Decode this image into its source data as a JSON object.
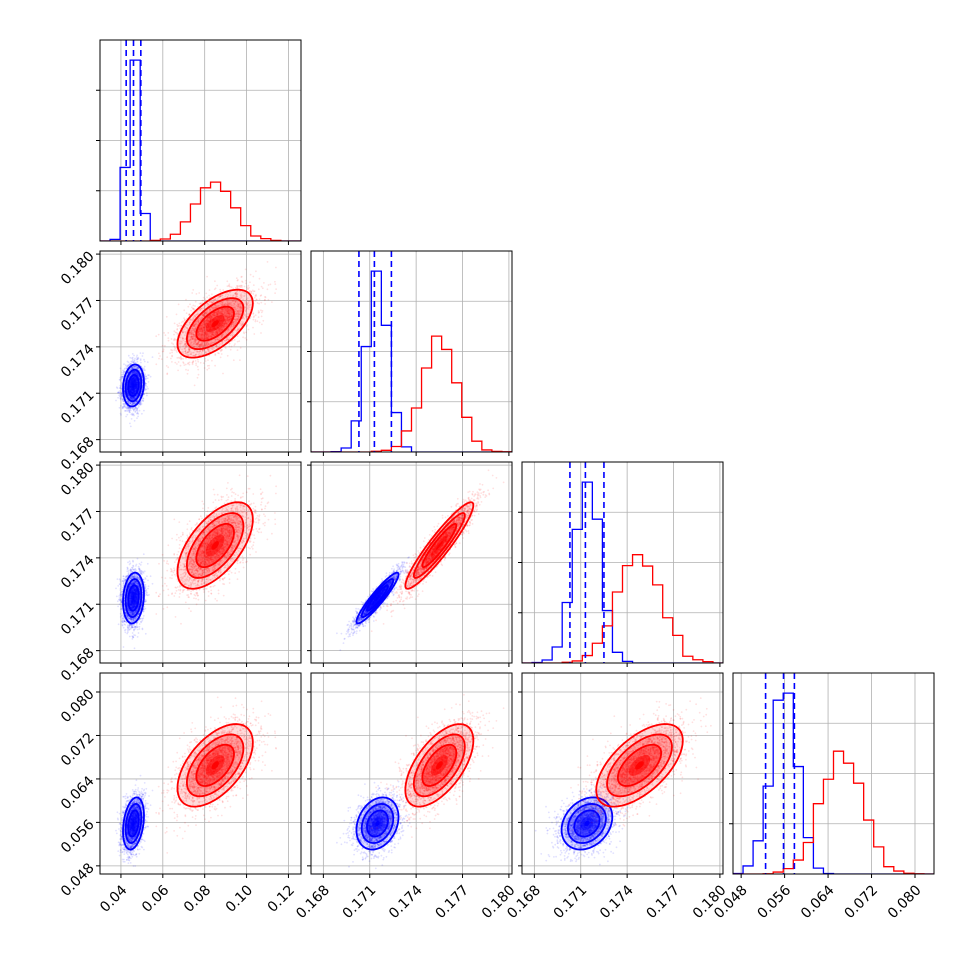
{
  "chart_data": {
    "type": "corner",
    "grid": true,
    "parameters": [
      {
        "ticks": [
          0.04,
          0.06,
          0.08,
          0.1,
          0.12
        ],
        "tick_labels": [
          "0.04",
          "0.06",
          "0.08",
          "0.10",
          "0.12"
        ],
        "range": [
          0.03,
          0.126
        ]
      },
      {
        "ticks": [
          0.168,
          0.171,
          0.174,
          0.177,
          0.18
        ],
        "tick_labels": [
          "0.168",
          "0.171",
          "0.174",
          "0.177",
          "0.180"
        ],
        "range": [
          0.1672,
          0.1802
        ]
      },
      {
        "ticks": [
          0.168,
          0.171,
          0.174,
          0.177,
          0.18
        ],
        "tick_labels": [
          "0.168",
          "0.171",
          "0.174",
          "0.177",
          "0.180"
        ],
        "range": [
          0.1672,
          0.1802
        ]
      },
      {
        "ticks": [
          0.048,
          0.056,
          0.064,
          0.072,
          0.08
        ],
        "tick_labels": [
          "0.048",
          "0.056",
          "0.064",
          "0.072",
          "0.080"
        ],
        "range": [
          0.0465,
          0.0835
        ]
      }
    ],
    "series": [
      {
        "color": "#0000ff",
        "means": [
          0.046,
          0.1715,
          0.1714,
          0.0558
        ],
        "sigmas": [
          0.0025,
          0.00068,
          0.00082,
          0.0024
        ],
        "correlations": [
          [
            1,
            0.15,
            0.15,
            0.3
          ],
          [
            0.15,
            1,
            0.93,
            0.25
          ],
          [
            0.15,
            0.93,
            1,
            0.25
          ],
          [
            0.3,
            0.25,
            0.25,
            1
          ]
        ],
        "quantiles": [
          [
            0.0425,
            0.046,
            0.0495
          ],
          [
            0.1703,
            0.1713,
            0.1724
          ],
          [
            0.1703,
            0.1713,
            0.1725
          ],
          [
            0.0525,
            0.0558,
            0.0578
          ]
        ]
      },
      {
        "color": "#ff0000",
        "means": [
          0.085,
          0.1755,
          0.1748,
          0.0665
        ],
        "sigmas": [
          0.009,
          0.0011,
          0.0014,
          0.0038
        ],
        "correlations": [
          [
            1,
            0.6,
            0.6,
            0.55
          ],
          [
            0.6,
            1,
            0.93,
            0.6
          ],
          [
            0.6,
            0.93,
            1,
            0.6
          ],
          [
            0.55,
            0.6,
            0.6,
            1
          ]
        ],
        "quantiles": null
      }
    ]
  }
}
